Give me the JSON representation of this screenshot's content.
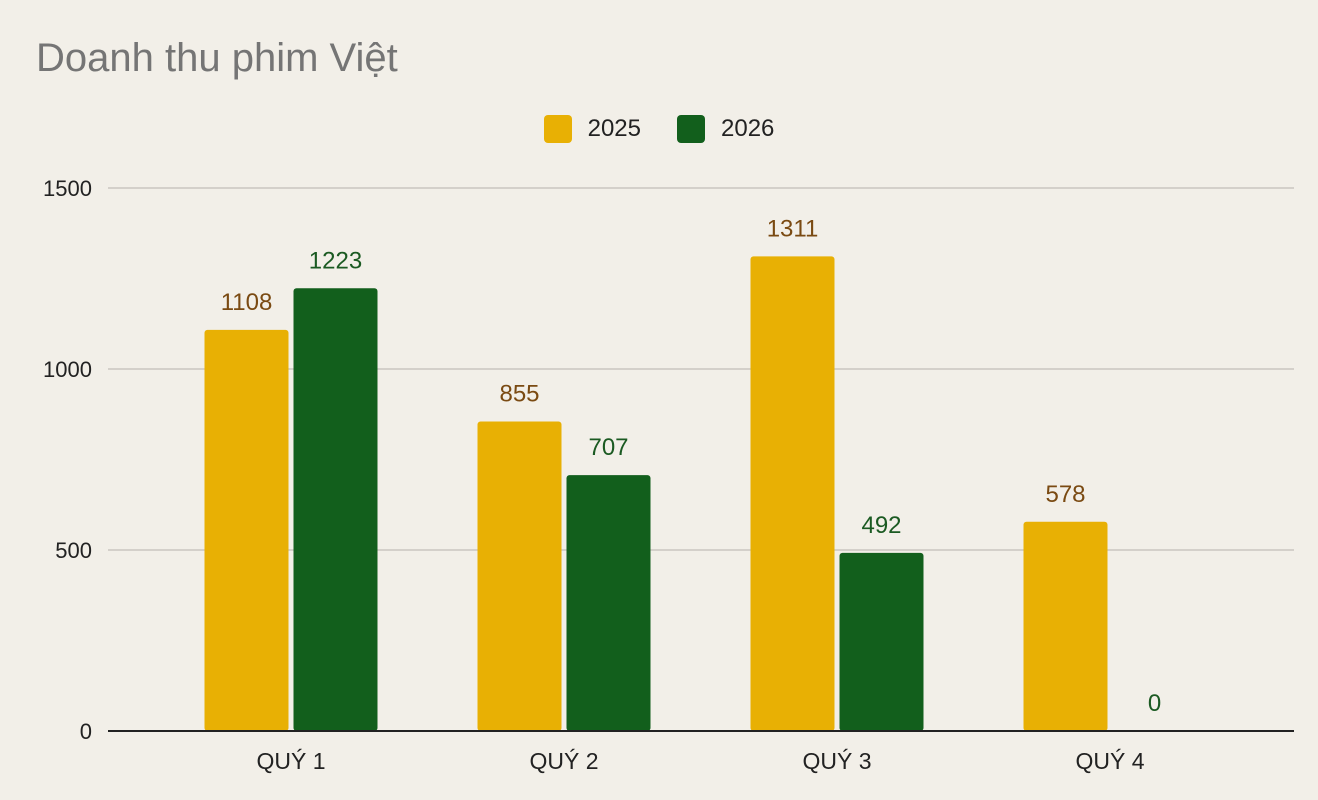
{
  "chart_data": {
    "type": "bar",
    "title": "Doanh thu phim Việt",
    "xlabel": "",
    "ylabel": "",
    "categories": [
      "QUÝ 1",
      "QUÝ 2",
      "QUÝ 3",
      "QUÝ 4"
    ],
    "series": [
      {
        "name": "2025",
        "values": [
          1108,
          855,
          1311,
          578
        ],
        "color": "#e8b004",
        "label_color": "#7a4a12"
      },
      {
        "name": "2026",
        "values": [
          1223,
          707,
          492,
          0
        ],
        "color": "#125f1c",
        "label_color": "#1b5a22"
      }
    ],
    "ylim": [
      0,
      1500
    ],
    "yticks": [
      0,
      500,
      1000,
      1500
    ],
    "grid": true,
    "legend_position": "top-center"
  }
}
